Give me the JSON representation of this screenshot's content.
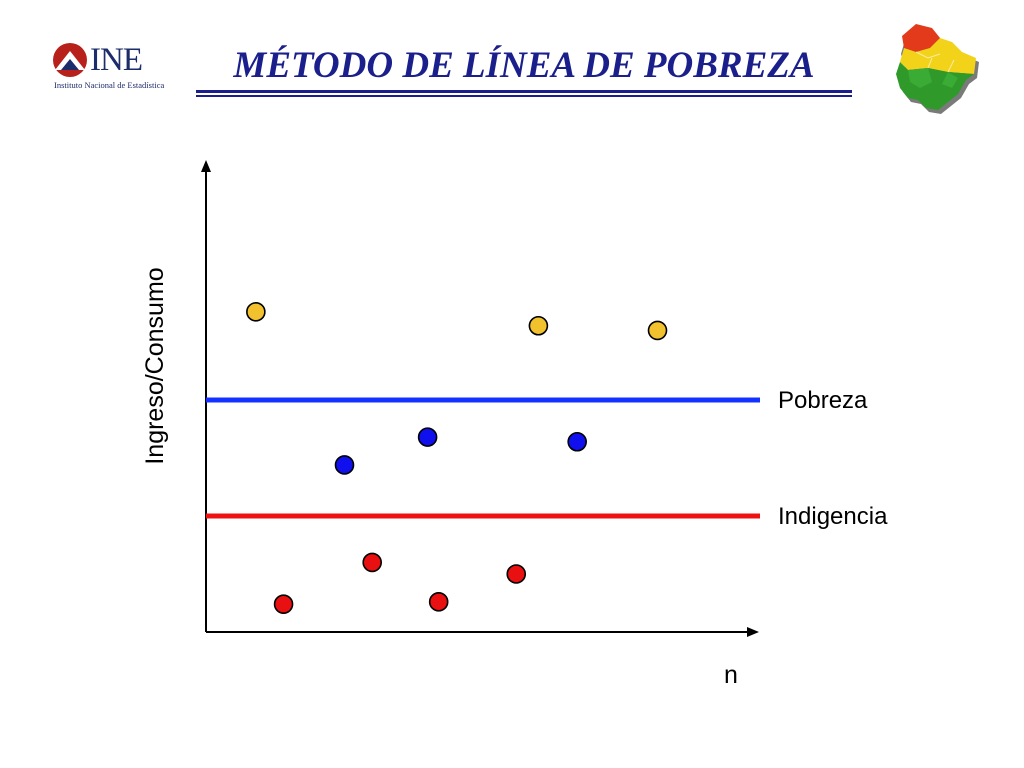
{
  "slide": {
    "title": "MÉTODO DE LÍNEA DE POBREZA",
    "logo": {
      "word": "INE",
      "subtitle": "Instituto Nacional de Estadística"
    },
    "map_icon": "bolivia-map-icon"
  },
  "colors": {
    "title": "#1a1f8c",
    "poverty_line": "#1432ff",
    "indigence_line": "#ee1111",
    "non_poor": "#f2c12e",
    "poor": "#1010ee",
    "indigent": "#e81010"
  },
  "chart_data": {
    "type": "scatter",
    "title": "",
    "xlabel": "n",
    "ylabel": "Ingreso/Consumo",
    "xlim": [
      0,
      100
    ],
    "ylim": [
      0,
      100
    ],
    "grid": false,
    "ticks": false,
    "reference_lines": [
      {
        "label": "Pobreza",
        "y": 50,
        "color": "#1432ff"
      },
      {
        "label": "Indigencia",
        "y": 25,
        "color": "#ee1111"
      }
    ],
    "series": [
      {
        "group": "above-poverty",
        "color": "#f2c12e",
        "points": [
          {
            "x": 9,
            "y": 69
          },
          {
            "x": 60,
            "y": 66
          },
          {
            "x": 81.5,
            "y": 65
          }
        ]
      },
      {
        "group": "poor",
        "color": "#1010ee",
        "points": [
          {
            "x": 25,
            "y": 36
          },
          {
            "x": 40,
            "y": 42
          },
          {
            "x": 67,
            "y": 41
          }
        ]
      },
      {
        "group": "indigent",
        "color": "#e81010",
        "points": [
          {
            "x": 14,
            "y": 6
          },
          {
            "x": 30,
            "y": 15
          },
          {
            "x": 42,
            "y": 6.5
          },
          {
            "x": 56,
            "y": 12.5
          }
        ]
      }
    ]
  }
}
